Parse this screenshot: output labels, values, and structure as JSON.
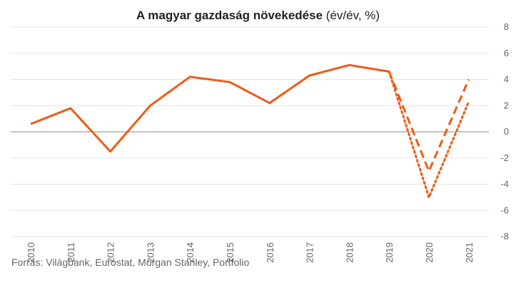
{
  "chart_data": {
    "type": "line",
    "title": "A magyar gazdaság növekedése",
    "title_unit": "(év/év, %)",
    "x": [
      "2010",
      "2011",
      "2012",
      "2013",
      "2014",
      "2015",
      "2016",
      "2017",
      "2018",
      "2019",
      "2020",
      "2021"
    ],
    "ylim": [
      -8,
      8
    ],
    "yticks": [
      8,
      6,
      4,
      2,
      0,
      -2,
      -4,
      -6,
      -8
    ],
    "grid": true,
    "y_axis_position": "right",
    "series": [
      {
        "style": "solid",
        "color": "#f05a12",
        "points": [
          {
            "x": "2010",
            "y": 0.6
          },
          {
            "x": "2011",
            "y": 1.8
          },
          {
            "x": "2012",
            "y": -1.5
          },
          {
            "x": "2013",
            "y": 2.0
          },
          {
            "x": "2014",
            "y": 4.2
          },
          {
            "x": "2015",
            "y": 3.8
          },
          {
            "x": "2016",
            "y": 2.2
          },
          {
            "x": "2017",
            "y": 4.3
          },
          {
            "x": "2018",
            "y": 5.1
          },
          {
            "x": "2019",
            "y": 4.6
          }
        ]
      },
      {
        "style": "dashed",
        "color": "#f05a12",
        "points": [
          {
            "x": "2019",
            "y": 4.6
          },
          {
            "x": "2020",
            "y": -3.0
          },
          {
            "x": "2021",
            "y": 4.0
          }
        ]
      },
      {
        "style": "dotted",
        "color": "#f05a12",
        "points": [
          {
            "x": "2019",
            "y": 4.6
          },
          {
            "x": "2020",
            "y": -5.0
          },
          {
            "x": "2021",
            "y": 2.3
          }
        ]
      }
    ]
  },
  "source": "Forrás: Világbank, Eurostat, Morgan Stanley, Portfolio"
}
